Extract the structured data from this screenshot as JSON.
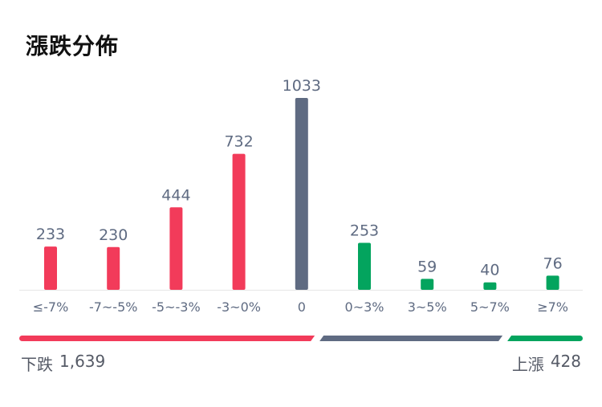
{
  "title": "漲跌分佈",
  "colors": {
    "down": "#f23b5a",
    "flat": "#5f6b82",
    "up": "#03a45e",
    "value_text": "#5f6b82",
    "tick_text": "#5f6b82",
    "baseline": "#e6e6e6"
  },
  "chart_data": {
    "type": "bar",
    "title": "漲跌分佈",
    "categories": [
      "≤-7%",
      "-7~-5%",
      "-5~-3%",
      "-3~0%",
      "0",
      "0~3%",
      "3~5%",
      "5~7%",
      "≥7%"
    ],
    "values": [
      233,
      230,
      444,
      732,
      1033,
      253,
      59,
      40,
      76
    ],
    "bar_colors": [
      "down",
      "down",
      "down",
      "down",
      "flat",
      "up",
      "up",
      "up",
      "up"
    ],
    "ylim": [
      0,
      1033
    ],
    "grid": false,
    "data_labels": true
  },
  "summary": {
    "down_label": "下跌",
    "down_count": "1,639",
    "up_label": "上漲",
    "up_count": "428",
    "split": {
      "down": 1639,
      "flat": 1033,
      "up": 428
    }
  }
}
